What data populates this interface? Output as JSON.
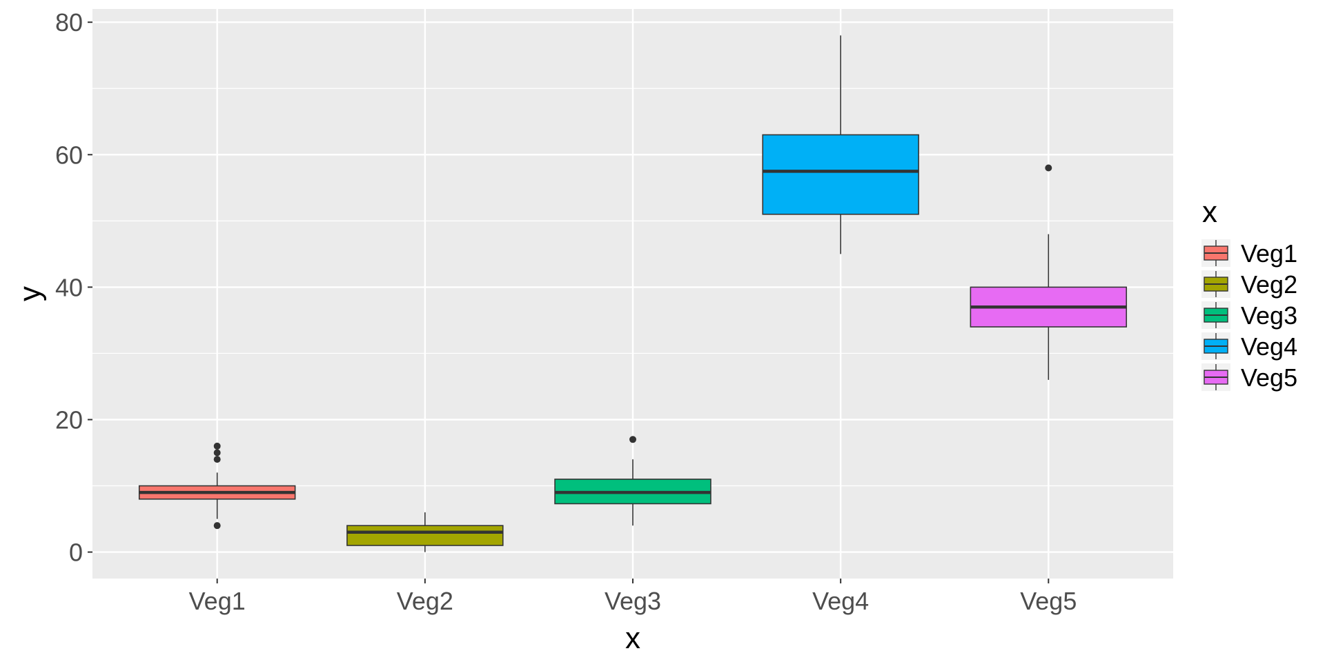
{
  "chart_data": {
    "type": "boxplot",
    "title": "",
    "xlabel": "x",
    "ylabel": "y",
    "categories": [
      "Veg1",
      "Veg2",
      "Veg3",
      "Veg4",
      "Veg5"
    ],
    "ylim": [
      -4,
      82
    ],
    "yticks": [
      0,
      20,
      40,
      60,
      80
    ],
    "grid": true,
    "legend": {
      "title": "x",
      "position": "right"
    },
    "series": [
      {
        "name": "Veg1",
        "color": "#F8766D",
        "whisker_low": 5,
        "q1": 8,
        "median": 9,
        "q3": 10,
        "whisker_high": 12,
        "outliers": [
          4,
          14,
          15,
          16
        ]
      },
      {
        "name": "Veg2",
        "color": "#A3A500",
        "whisker_low": 0,
        "q1": 1,
        "median": 3,
        "q3": 4,
        "whisker_high": 6,
        "outliers": []
      },
      {
        "name": "Veg3",
        "color": "#00BF7D",
        "whisker_low": 4,
        "q1": 7.3,
        "median": 9,
        "q3": 11,
        "whisker_high": 14,
        "outliers": [
          17
        ]
      },
      {
        "name": "Veg4",
        "color": "#00B0F6",
        "whisker_low": 45,
        "q1": 51,
        "median": 57.5,
        "q3": 63,
        "whisker_high": 78,
        "outliers": []
      },
      {
        "name": "Veg5",
        "color": "#E76BF3",
        "whisker_low": 26,
        "q1": 34,
        "median": 37,
        "q3": 40,
        "whisker_high": 48,
        "outliers": [
          58
        ]
      }
    ]
  }
}
